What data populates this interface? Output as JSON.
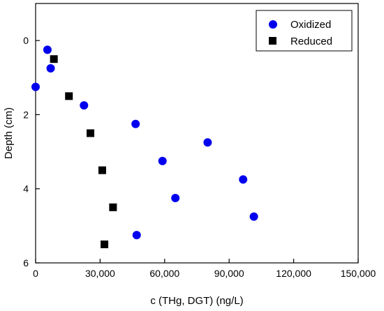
{
  "chart_data": {
    "type": "scatter",
    "xlabel": "c (THg, DGT) (ng/L)",
    "ylabel": "Depth (cm)",
    "xlim": [
      0,
      150000
    ],
    "ylim": [
      6,
      -1
    ],
    "y_axis_inverted": true,
    "x_ticks": [
      0,
      30000,
      60000,
      90000,
      120000,
      150000
    ],
    "x_tick_labels": [
      "0",
      "30,000",
      "60,000",
      "90,000",
      "120,000",
      "150,000"
    ],
    "y_ticks": [
      0,
      2,
      4,
      6
    ],
    "y_tick_labels": [
      "0",
      "2",
      "4",
      "6"
    ],
    "grid": false,
    "legend_position": "top-right",
    "series": [
      {
        "name": "Oxidized",
        "marker": "circle",
        "color": "#0000ee",
        "points": [
          {
            "x": 5500,
            "y": 0.25
          },
          {
            "x": 7000,
            "y": 0.75
          },
          {
            "x": 0,
            "y": 1.25
          },
          {
            "x": 22500,
            "y": 1.75
          },
          {
            "x": 46500,
            "y": 2.25
          },
          {
            "x": 80000,
            "y": 2.75
          },
          {
            "x": 59000,
            "y": 3.25
          },
          {
            "x": 96500,
            "y": 3.75
          },
          {
            "x": 65000,
            "y": 4.25
          },
          {
            "x": 101500,
            "y": 4.75
          },
          {
            "x": 47000,
            "y": 5.25
          }
        ]
      },
      {
        "name": "Reduced",
        "marker": "square",
        "color": "#000000",
        "points": [
          {
            "x": 8500,
            "y": 0.5
          },
          {
            "x": 15500,
            "y": 1.5
          },
          {
            "x": 25500,
            "y": 2.5
          },
          {
            "x": 31000,
            "y": 3.5
          },
          {
            "x": 36000,
            "y": 4.5
          },
          {
            "x": 32000,
            "y": 5.5
          }
        ]
      }
    ]
  }
}
